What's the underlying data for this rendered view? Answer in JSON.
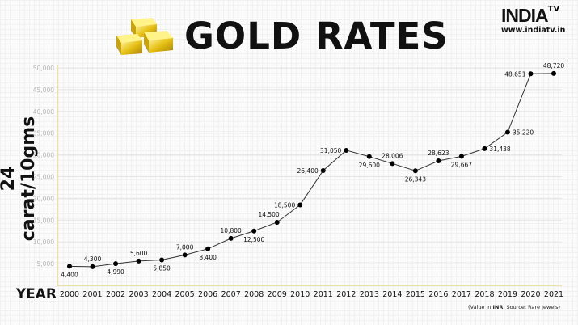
{
  "header": {
    "title": "GOLD RATES",
    "logo_brand": "INDIA",
    "logo_tv": "TV",
    "logo_url": "www.indiatv.in"
  },
  "footer": {
    "source_prefix": "(Value in ",
    "source_bold": "INR",
    "source_suffix": ". Source: Rare Jewels)"
  },
  "colors": {
    "line": "#333333",
    "point": "#000000",
    "axis": "#e8d98a",
    "grid": "#e4e4e4"
  },
  "chart_data": {
    "type": "line",
    "title": "GOLD RATES",
    "xlabel": "YEAR",
    "ylabel": "24 carat/10gms",
    "ylim": [
      0,
      50000
    ],
    "yticks": [
      5000,
      10000,
      15000,
      20000,
      25000,
      30000,
      35000,
      40000,
      45000,
      50000
    ],
    "ytick_labels": [
      "5,000",
      "10,000",
      "15,000",
      "20,000",
      "25,000",
      "30,000",
      "35,000",
      "40,000",
      "45,000",
      "50,000"
    ],
    "grid": true,
    "categories": [
      "2000",
      "2001",
      "2002",
      "2003",
      "2004",
      "2005",
      "2006",
      "2007",
      "2008",
      "2009",
      "2010",
      "2011",
      "2012",
      "2013",
      "2014",
      "2015",
      "2016",
      "2017",
      "2018",
      "2019",
      "2020",
      "2021"
    ],
    "values": [
      4400,
      4300,
      4990,
      5600,
      5850,
      7000,
      8400,
      10800,
      12500,
      14500,
      18500,
      26400,
      31050,
      29600,
      28006,
      26343,
      28623,
      29667,
      31438,
      35220,
      48651,
      48720
    ],
    "data_labels": [
      "4,400",
      "4,300",
      "4,990",
      "5,600",
      "5,850",
      "7,000",
      "8,400",
      "10,800",
      "12,500",
      "14,500",
      "18,500",
      "26,400",
      "31,050",
      "29,600",
      "28,006",
      "26,343",
      "28,623",
      "29,667",
      "31,438",
      "35,220",
      "48,651",
      "48,720"
    ],
    "label_placement": [
      "below",
      "above",
      "below",
      "above",
      "below",
      "above",
      "below",
      "above",
      "below",
      "above",
      "left",
      "left",
      "left",
      "below",
      "above",
      "below",
      "above",
      "below",
      "right",
      "right",
      "left",
      "above"
    ],
    "unit_note": "Value in INR"
  }
}
